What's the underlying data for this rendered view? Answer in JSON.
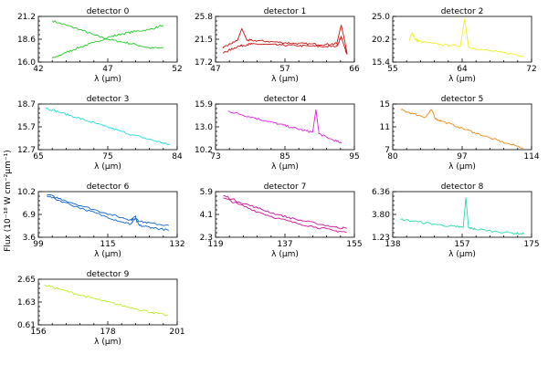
{
  "figure": {
    "ylabel": "Flux (10⁻¹⁸ W cm⁻²μm⁻¹)"
  },
  "chart_data": [
    {
      "type": "line",
      "title": "detector 0",
      "xlabel": "λ (μm)",
      "xlim": [
        42,
        52
      ],
      "ylim": [
        16.0,
        21.2
      ],
      "xticks": [
        "42",
        "47",
        "52"
      ],
      "yticks": [
        "16.0",
        "18.6",
        "21.2"
      ],
      "color": "#22cc22",
      "series": [
        {
          "x": [
            43,
            44,
            45,
            46,
            47,
            48,
            49,
            50,
            51
          ],
          "y": [
            20.7,
            20.2,
            19.7,
            19.1,
            18.6,
            18.3,
            18.0,
            17.6,
            17.6
          ]
        },
        {
          "x": [
            43,
            44,
            45,
            46,
            47,
            48,
            49,
            50,
            51
          ],
          "y": [
            16.4,
            17.1,
            17.7,
            18.2,
            18.8,
            19.2,
            19.5,
            19.7,
            20.2
          ]
        }
      ]
    },
    {
      "type": "line",
      "title": "detector 1",
      "xlabel": "λ (μm)",
      "xlim": [
        47,
        66
      ],
      "ylim": [
        17.2,
        25.8
      ],
      "xticks": [
        "47",
        "57",
        "66"
      ],
      "yticks": [
        "17.2",
        "21.5",
        "25.8"
      ],
      "color": "#cc1111",
      "series": [
        {
          "x": [
            48,
            49,
            50,
            50.6,
            51.3,
            52,
            54,
            56,
            58,
            60,
            62,
            63.6,
            64.2,
            64.7,
            65
          ],
          "y": [
            19.8,
            20.6,
            21.3,
            23.5,
            21.3,
            21.3,
            21.1,
            20.9,
            20.7,
            20.6,
            20.5,
            20.7,
            24.2,
            21.0,
            18.8
          ]
        },
        {
          "x": [
            48,
            49,
            50,
            51.3,
            52,
            54,
            56,
            58,
            60,
            62,
            63.6,
            64.2,
            64.7,
            65
          ],
          "y": [
            18.9,
            19.5,
            20.1,
            20.5,
            20.6,
            20.5,
            20.4,
            20.3,
            20.2,
            20.1,
            20.2,
            22.0,
            19.8,
            18.6
          ]
        }
      ]
    },
    {
      "type": "line",
      "title": "detector 2",
      "xlabel": "λ (μm)",
      "xlim": [
        55,
        72
      ],
      "ylim": [
        15.4,
        25.0
      ],
      "xticks": [
        "55",
        "64",
        "72"
      ],
      "yticks": [
        "15.4",
        "20.2",
        "25.0"
      ],
      "color": "#eeee22",
      "series": [
        {
          "x": [
            57,
            57.4,
            57.8,
            58.3,
            60,
            62,
            63.3,
            63.8,
            64.3,
            66,
            68,
            70,
            71
          ],
          "y": [
            20.0,
            21.5,
            20.1,
            19.7,
            19.3,
            18.9,
            18.8,
            24.5,
            18.5,
            18.0,
            17.5,
            17.0,
            16.6
          ]
        }
      ]
    },
    {
      "type": "line",
      "title": "detector 3",
      "xlabel": "λ (μm)",
      "xlim": [
        65,
        84
      ],
      "ylim": [
        12.7,
        18.7
      ],
      "xticks": [
        "65",
        "75",
        "84"
      ],
      "yticks": [
        "12.7",
        "15.7",
        "18.7"
      ],
      "color": "#22dddd",
      "series": [
        {
          "x": [
            66,
            68,
            70,
            72,
            74,
            76,
            78,
            80,
            82,
            83
          ],
          "y": [
            18.2,
            17.6,
            17.0,
            16.4,
            15.8,
            15.2,
            14.6,
            14.1,
            13.6,
            13.3
          ]
        }
      ]
    },
    {
      "type": "line",
      "title": "detector 4",
      "xlabel": "λ (μm)",
      "xlim": [
        73,
        95
      ],
      "ylim": [
        10.2,
        15.9
      ],
      "xticks": [
        "73",
        "85",
        "95"
      ],
      "yticks": [
        "10.2",
        "13.0",
        "15.9"
      ],
      "color": "#dd22dd",
      "series": [
        {
          "x": [
            75,
            77,
            79,
            81,
            83,
            85,
            87,
            88.4,
            88.9,
            89.4,
            91,
            93
          ],
          "y": [
            15.0,
            14.6,
            14.2,
            13.8,
            13.4,
            13.0,
            12.6,
            12.4,
            15.2,
            12.2,
            11.6,
            11.0
          ]
        }
      ]
    },
    {
      "type": "line",
      "title": "detector 5",
      "xlabel": "λ (μm)",
      "xlim": [
        80,
        114
      ],
      "ylim": [
        7.0,
        15.0
      ],
      "xticks": [
        "80",
        "97",
        "114"
      ],
      "yticks": [
        "7",
        "11",
        "15"
      ],
      "color": "#ee8811",
      "series": [
        {
          "x": [
            82,
            85,
            88,
            89.5,
            90.5,
            92,
            96,
            100,
            104,
            108,
            112
          ],
          "y": [
            14.0,
            13.3,
            12.7,
            14.0,
            12.4,
            12.0,
            11.0,
            10.0,
            9.0,
            8.1,
            7.3
          ]
        }
      ]
    },
    {
      "type": "line",
      "title": "detector 6",
      "xlabel": "λ (μm)",
      "xlim": [
        99,
        132
      ],
      "ylim": [
        3.6,
        10.2
      ],
      "xticks": [
        "99",
        "115",
        "132"
      ],
      "yticks": [
        "3.6",
        "6.9",
        "10.2"
      ],
      "color": "#1166cc",
      "series": [
        {
          "x": [
            101,
            105,
            110,
            115,
            119,
            121,
            122,
            123,
            126,
            130
          ],
          "y": [
            9.6,
            8.7,
            7.6,
            6.6,
            5.8,
            5.5,
            6.3,
            5.3,
            5.0,
            4.6
          ]
        },
        {
          "x": [
            101,
            105,
            110,
            115,
            119,
            121,
            122,
            123,
            126,
            130
          ],
          "y": [
            9.8,
            9.0,
            8.0,
            7.1,
            6.4,
            6.1,
            6.6,
            5.9,
            5.6,
            5.3
          ]
        }
      ]
    },
    {
      "type": "line",
      "title": "detector 7",
      "xlabel": "λ (μm)",
      "xlim": [
        119,
        155
      ],
      "ylim": [
        2.3,
        5.9
      ],
      "xticks": [
        "119",
        "137",
        "155"
      ],
      "yticks": [
        "2.3",
        "4.1",
        "5.9"
      ],
      "color": "#cc1199",
      "series": [
        {
          "x": [
            121,
            125,
            130,
            135,
            140,
            145,
            150,
            153
          ],
          "y": [
            5.4,
            4.9,
            4.3,
            3.8,
            3.4,
            3.1,
            2.8,
            2.7
          ]
        },
        {
          "x": [
            121,
            125,
            130,
            135,
            140,
            145,
            150,
            153
          ],
          "y": [
            5.6,
            5.1,
            4.6,
            4.1,
            3.7,
            3.4,
            3.1,
            3.0
          ]
        }
      ]
    },
    {
      "type": "line",
      "title": "detector 8",
      "xlabel": "λ (μm)",
      "xlim": [
        138,
        175
      ],
      "ylim": [
        1.23,
        6.36
      ],
      "xticks": [
        "138",
        "157",
        "175"
      ],
      "yticks": [
        "1.23",
        "3.80",
        "6.36"
      ],
      "color": "#22ddaa",
      "series": [
        {
          "x": [
            140,
            145,
            150,
            155,
            156.8,
            157.5,
            158.2,
            160,
            165,
            170,
            173
          ],
          "y": [
            3.25,
            2.95,
            2.65,
            2.4,
            2.35,
            5.7,
            2.3,
            2.15,
            1.9,
            1.7,
            1.6
          ]
        }
      ]
    },
    {
      "type": "line",
      "title": "detector 9",
      "xlabel": "λ (μm)",
      "xlim": [
        156,
        201
      ],
      "ylim": [
        0.61,
        2.65
      ],
      "xticks": [
        "156",
        "178",
        "201"
      ],
      "yticks": [
        "0.61",
        "1.63",
        "2.65"
      ],
      "color": "#bbee22",
      "series": [
        {
          "x": [
            158,
            163,
            168,
            173,
            178,
            183,
            188,
            193,
            198
          ],
          "y": [
            2.4,
            2.2,
            2.0,
            1.82,
            1.65,
            1.48,
            1.32,
            1.16,
            1.02
          ]
        }
      ]
    }
  ]
}
